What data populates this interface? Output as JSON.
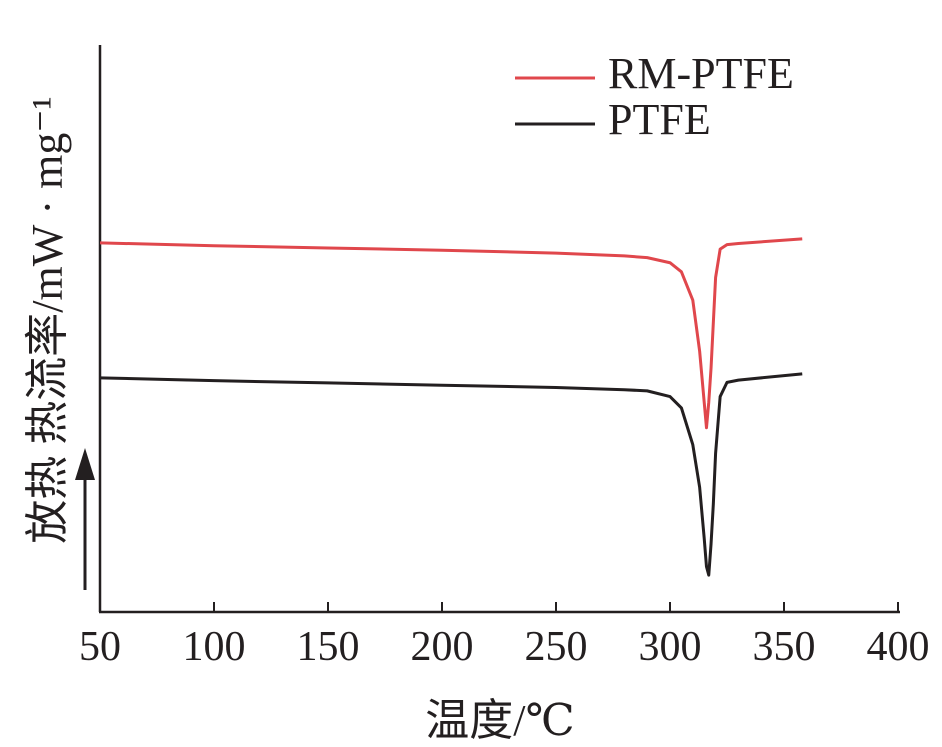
{
  "chart_data": {
    "type": "line",
    "xlabel": "温度/℃",
    "ylabel": "放热 热流率/mW · mg⁻¹",
    "x": [
      50,
      100,
      150,
      200,
      250,
      280,
      290,
      300,
      305,
      310,
      313,
      315,
      316,
      317,
      318,
      319,
      320,
      322,
      325,
      330,
      358
    ],
    "series": [
      {
        "name": "RM-PTFE",
        "color": "#e0474c",
        "values": [
          6.51,
          6.46,
          6.42,
          6.38,
          6.33,
          6.28,
          6.25,
          6.16,
          6.0,
          5.5,
          4.6,
          3.7,
          3.25,
          3.7,
          4.3,
          5.1,
          5.9,
          6.4,
          6.48,
          6.5,
          6.58
        ]
      },
      {
        "name": "PTFE",
        "color": "#231f20",
        "values": [
          4.13,
          4.08,
          4.04,
          4.0,
          3.96,
          3.92,
          3.9,
          3.8,
          3.6,
          2.95,
          2.2,
          1.3,
          0.8,
          0.65,
          1.2,
          1.9,
          2.8,
          3.8,
          4.05,
          4.09,
          4.2
        ]
      }
    ],
    "xlim": [
      50,
      400
    ],
    "xticks": [
      50,
      100,
      150,
      200,
      250,
      300,
      350,
      400
    ],
    "ylim": [
      0,
      10
    ]
  }
}
